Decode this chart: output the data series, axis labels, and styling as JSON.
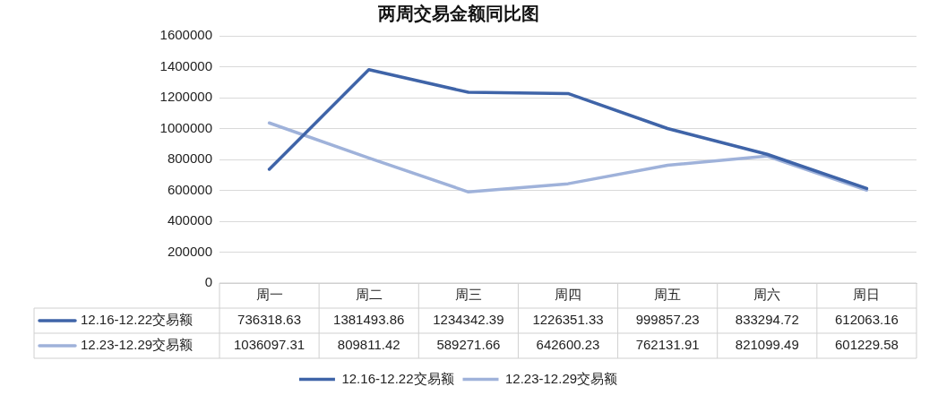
{
  "chart_data": {
    "type": "line",
    "title": "两周交易金额同比图",
    "categories": [
      "周一",
      "周二",
      "周三",
      "周四",
      "周五",
      "周六",
      "周日"
    ],
    "series": [
      {
        "name": "12.16-12.22交易额",
        "color": "#3f64a8",
        "values": [
          736318.63,
          1381493.86,
          1234342.39,
          1226351.33,
          999857.23,
          833294.72,
          612063.16
        ]
      },
      {
        "name": "12.23-12.29交易额",
        "color": "#9fb2da",
        "values": [
          1036097.31,
          809811.42,
          589271.66,
          642600.23,
          762131.91,
          821099.49,
          601229.58
        ]
      }
    ],
    "ylim": [
      0,
      1600000
    ],
    "yticks": [
      0,
      200000,
      400000,
      600000,
      800000,
      1000000,
      1200000,
      1400000,
      1600000
    ],
    "grid": "y",
    "legend": "bottom",
    "marker": "none",
    "line_style": "solid",
    "data_labels": true
  }
}
